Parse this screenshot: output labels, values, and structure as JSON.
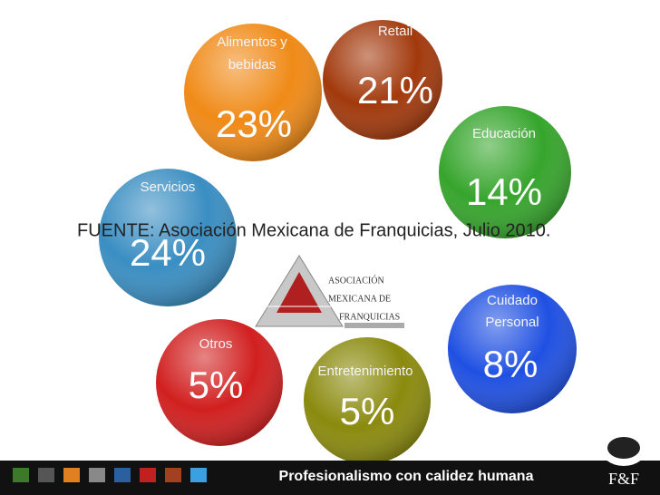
{
  "segments": [
    {
      "label": [
        "Retail"
      ],
      "value": "21%"
    },
    {
      "label": [
        "Alimentos y",
        "bebidas"
      ],
      "value": "23%"
    },
    {
      "label": [
        "Educación"
      ],
      "value": "14%"
    },
    {
      "label": [
        "Servicios"
      ],
      "value": "24%"
    },
    {
      "label": [
        "Cuidado",
        "Personal"
      ],
      "value": "8%"
    },
    {
      "label": [
        "Otros"
      ],
      "value": "5%"
    },
    {
      "label": [
        "Entretenimiento"
      ],
      "value": "5%"
    }
  ],
  "source": "FUENTE: Asociación Mexicana de Franquicias, Julio 2010.",
  "logo": {
    "lines": [
      "ASOCIACIÓN",
      "MEXICANA DE",
      "FRANQUICIAS"
    ]
  },
  "footer": {
    "tagline": "Profesionalismo con calidez humana",
    "brand": "F&F"
  }
}
